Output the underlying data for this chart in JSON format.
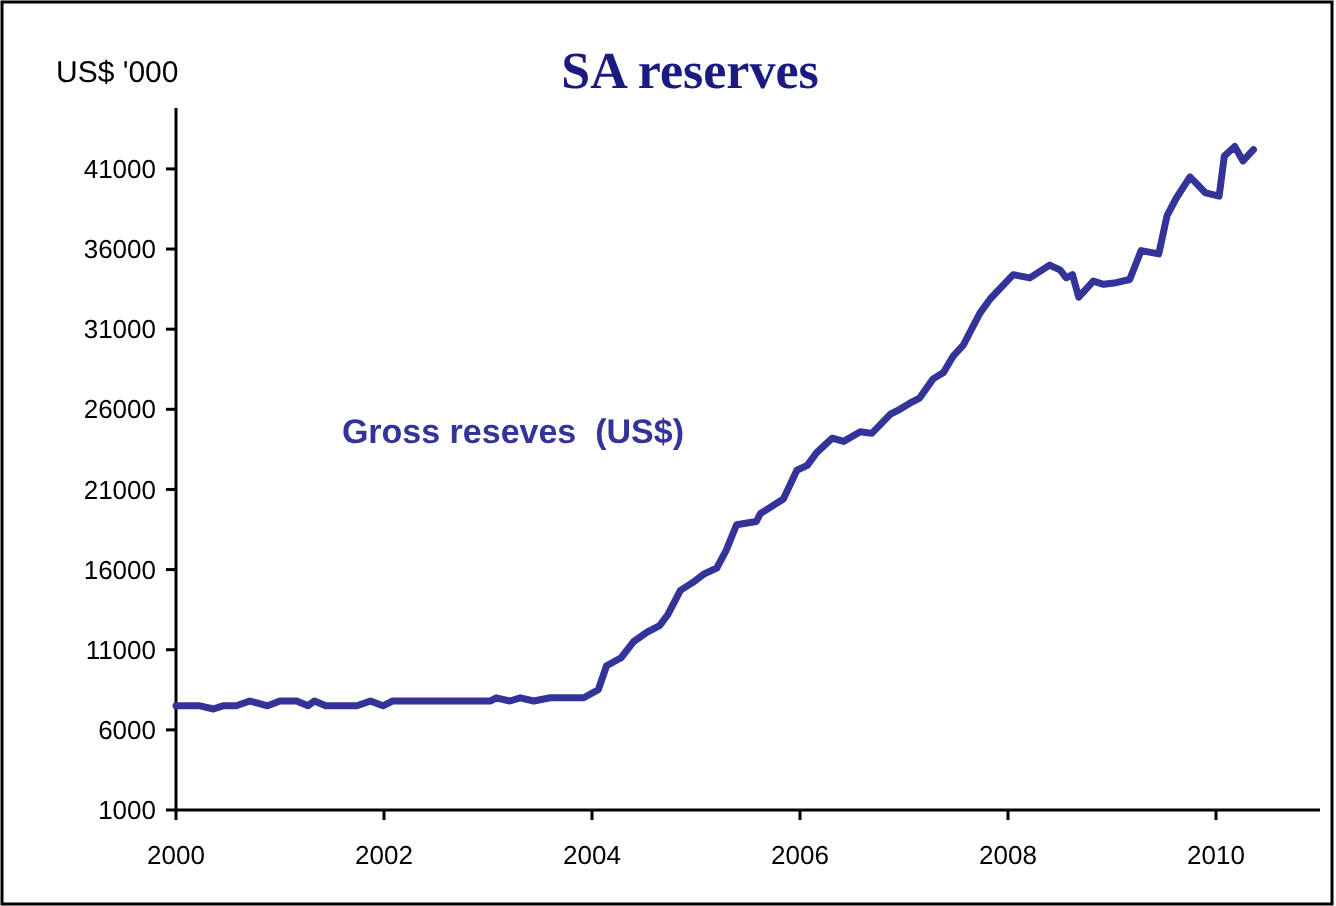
{
  "chart_data": {
    "type": "line",
    "title": "SA reserves",
    "ylabel": "US$ '000",
    "x": [
      2000.0,
      2000.23,
      2000.36,
      2000.45,
      2000.58,
      2000.71,
      2000.88,
      2001.0,
      2001.16,
      2001.27,
      2001.33,
      2001.44,
      2001.74,
      2001.87,
      2001.99,
      2002.08,
      2003.02,
      2003.08,
      2003.21,
      2003.31,
      2003.44,
      2003.6,
      2003.92,
      2004.06,
      2004.14,
      2004.28,
      2004.4,
      2004.53,
      2004.65,
      2004.73,
      2004.85,
      2004.97,
      2005.07,
      2005.2,
      2005.29,
      2005.39,
      2005.58,
      2005.62,
      2005.84,
      2005.97,
      2006.07,
      2006.16,
      2006.31,
      2006.42,
      2006.58,
      2006.69,
      2006.87,
      2006.96,
      2007.06,
      2007.15,
      2007.28,
      2007.38,
      2007.47,
      2007.57,
      2007.73,
      2007.83,
      2008.05,
      2008.21,
      2008.4,
      2008.5,
      2008.56,
      2008.62,
      2008.68,
      2008.82,
      2008.92,
      2009.04,
      2009.17,
      2009.28,
      2009.45,
      2009.53,
      2009.62,
      2009.75,
      2009.9,
      2010.03,
      2010.08,
      2010.18,
      2010.26,
      2010.36
    ],
    "series": [
      {
        "name": "Gross reseves  (US$)",
        "color": "#333399",
        "values": [
          7500,
          7500,
          7300,
          7500,
          7500,
          7800,
          7500,
          7800,
          7800,
          7500,
          7800,
          7500,
          7500,
          7800,
          7500,
          7800,
          7800,
          8000,
          7800,
          8000,
          7800,
          8000,
          8000,
          8500,
          10000,
          10500,
          11500,
          12100,
          12500,
          13200,
          14700,
          15200,
          15700,
          16100,
          17200,
          18800,
          19000,
          19500,
          20400,
          22200,
          22500,
          23300,
          24200,
          24000,
          24600,
          24500,
          25700,
          26000,
          26400,
          26700,
          27900,
          28300,
          29300,
          30000,
          32000,
          32900,
          34400,
          34200,
          35000,
          34700,
          34200,
          34400,
          33000,
          34000,
          33800,
          33900,
          34100,
          35900,
          35700,
          38100,
          39200,
          40500,
          39500,
          39300,
          41800,
          42400,
          41500,
          42200
        ]
      }
    ],
    "xlim": [
      2000,
      2011
    ],
    "xticks": [
      2000,
      2002,
      2004,
      2006,
      2008,
      2010
    ],
    "ylim": [
      1000,
      44800
    ],
    "yticks": [
      1000,
      6000,
      11000,
      16000,
      21000,
      26000,
      31000,
      36000,
      41000
    ],
    "grid": false,
    "marker": "none",
    "line_style": "solid"
  }
}
